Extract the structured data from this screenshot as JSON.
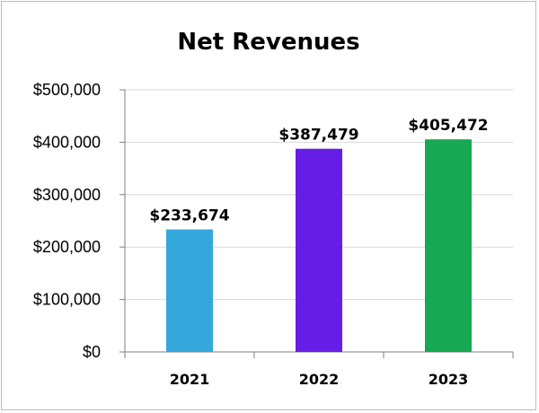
{
  "chart_data": {
    "type": "bar",
    "title": "Net Revenues",
    "categories": [
      "2021",
      "2022",
      "2023"
    ],
    "values": [
      233674,
      387479,
      405472
    ],
    "data_labels": [
      "$233,674",
      "$387,479",
      "$405,472"
    ],
    "colors": [
      "#34A8DC",
      "#661EE6",
      "#17A854"
    ],
    "ylim": [
      0,
      500000
    ],
    "yticks": [
      0,
      100000,
      200000,
      300000,
      400000,
      500000
    ],
    "ytick_labels": [
      "$0",
      "$100,000",
      "$200,000",
      "$300,000",
      "$400,000",
      "$500,000"
    ],
    "xlabel": "",
    "ylabel": "",
    "grid": true,
    "legend": "none"
  }
}
